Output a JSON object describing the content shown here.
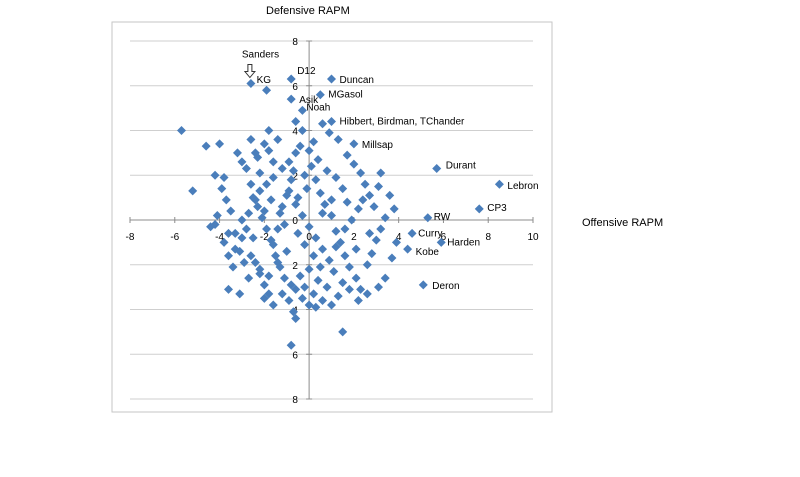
{
  "chart_data": {
    "type": "scatter",
    "title": "",
    "xlabel": "Offensive RAPM",
    "ylabel": "Defensive RAPM",
    "xlim": [
      -8,
      10
    ],
    "ylim": [
      -8,
      8
    ],
    "x_ticks": [
      "-8",
      "-6",
      "-4",
      "-2",
      "0",
      "2",
      "4",
      "6",
      "8",
      "10"
    ],
    "y_ticks": [
      "8",
      "6",
      "4",
      "2",
      "0",
      "2",
      "4",
      "6",
      "8"
    ],
    "grid": "horizontal",
    "legend": "none",
    "marker_color": "#4a7ebb",
    "labeled_points": [
      {
        "label": "Sanders",
        "x": -2.6,
        "y": 6.1
      },
      {
        "label": "KG",
        "x": -1.9,
        "y": 5.8
      },
      {
        "label": "D12",
        "x": -0.8,
        "y": 6.3
      },
      {
        "label": "Duncan",
        "x": 1.0,
        "y": 6.3
      },
      {
        "label": "Asik",
        "x": -0.8,
        "y": 5.4
      },
      {
        "label": "MGasol",
        "x": 0.5,
        "y": 5.6
      },
      {
        "label": "Noah",
        "x": -0.3,
        "y": 4.9
      },
      {
        "label": "Hibbert, Birdman, TChander",
        "x": 1.0,
        "y": 4.4
      },
      {
        "label": "Millsap",
        "x": 2.0,
        "y": 3.4
      },
      {
        "label": "Durant",
        "x": 5.7,
        "y": 2.3
      },
      {
        "label": "Lebron",
        "x": 8.5,
        "y": 1.6
      },
      {
        "label": "CP3",
        "x": 7.6,
        "y": 0.5
      },
      {
        "label": "RW",
        "x": 5.3,
        "y": 0.1
      },
      {
        "label": "Curry",
        "x": 4.6,
        "y": -0.6
      },
      {
        "label": "Harden",
        "x": 5.9,
        "y": -1.0
      },
      {
        "label": "Kobe",
        "x": 4.4,
        "y": -1.3
      },
      {
        "label": "Deron",
        "x": 5.1,
        "y": -2.9
      }
    ],
    "other_points": [
      [
        -5.7,
        4.0
      ],
      [
        -5.2,
        1.3
      ],
      [
        -4.6,
        3.3
      ],
      [
        -4.0,
        3.4
      ],
      [
        -4.2,
        2.0
      ],
      [
        -3.8,
        1.9
      ],
      [
        -4.4,
        -0.3
      ],
      [
        -4.2,
        -0.2
      ],
      [
        -3.6,
        -0.6
      ],
      [
        -3.3,
        -1.3
      ],
      [
        -3.4,
        -2.1
      ],
      [
        -3.6,
        -3.1
      ],
      [
        -3.1,
        -3.3
      ],
      [
        -3.0,
        -0.8
      ],
      [
        -3.2,
        3.0
      ],
      [
        -3.0,
        2.6
      ],
      [
        -2.8,
        2.3
      ],
      [
        -2.6,
        1.6
      ],
      [
        -2.4,
        0.9
      ],
      [
        -2.2,
        1.3
      ],
      [
        -2.0,
        0.4
      ],
      [
        -3.0,
        0.0
      ],
      [
        -2.8,
        -0.4
      ],
      [
        -2.6,
        -1.6
      ],
      [
        -2.4,
        -1.9
      ],
      [
        -2.2,
        -2.4
      ],
      [
        -2.0,
        -2.9
      ],
      [
        -1.8,
        -3.3
      ],
      [
        -1.6,
        -1.1
      ],
      [
        -1.4,
        -0.4
      ],
      [
        -1.2,
        0.6
      ],
      [
        -1.0,
        1.1
      ],
      [
        -0.8,
        1.8
      ],
      [
        -1.6,
        2.6
      ],
      [
        -1.8,
        3.1
      ],
      [
        -1.4,
        3.6
      ],
      [
        -1.8,
        4.0
      ],
      [
        -2.0,
        3.4
      ],
      [
        -2.4,
        3.0
      ],
      [
        -2.6,
        3.6
      ],
      [
        -2.2,
        2.1
      ],
      [
        -1.9,
        1.6
      ],
      [
        -1.6,
        1.9
      ],
      [
        -1.2,
        2.3
      ],
      [
        -0.9,
        2.6
      ],
      [
        -0.6,
        3.0
      ],
      [
        -0.4,
        3.3
      ],
      [
        -0.2,
        2.0
      ],
      [
        0.1,
        2.4
      ],
      [
        0.3,
        1.8
      ],
      [
        0.5,
        1.2
      ],
      [
        0.7,
        0.7
      ],
      [
        1.0,
        0.2
      ],
      [
        1.2,
        -0.5
      ],
      [
        1.4,
        -1.0
      ],
      [
        1.6,
        -1.6
      ],
      [
        1.8,
        -2.1
      ],
      [
        2.1,
        -2.6
      ],
      [
        2.3,
        -3.1
      ],
      [
        2.6,
        -2.0
      ],
      [
        2.8,
        -1.5
      ],
      [
        3.0,
        -0.9
      ],
      [
        3.2,
        -0.4
      ],
      [
        3.4,
        0.1
      ],
      [
        2.9,
        0.6
      ],
      [
        2.7,
        1.1
      ],
      [
        2.5,
        1.6
      ],
      [
        2.3,
        2.1
      ],
      [
        2.0,
        2.5
      ],
      [
        1.7,
        2.9
      ],
      [
        1.3,
        3.6
      ],
      [
        0.9,
        3.9
      ],
      [
        0.6,
        4.3
      ],
      [
        0.2,
        3.5
      ],
      [
        0.0,
        3.1
      ],
      [
        -0.3,
        4.0
      ],
      [
        -0.6,
        4.4
      ],
      [
        3.2,
        2.1
      ],
      [
        3.6,
        1.1
      ],
      [
        3.8,
        0.5
      ],
      [
        3.9,
        -1.0
      ],
      [
        3.7,
        -1.7
      ],
      [
        3.4,
        -2.6
      ],
      [
        3.1,
        -3.0
      ],
      [
        2.6,
        -3.3
      ],
      [
        2.2,
        -3.6
      ],
      [
        1.8,
        -3.1
      ],
      [
        1.5,
        -2.8
      ],
      [
        1.3,
        -3.4
      ],
      [
        1.0,
        -3.8
      ],
      [
        0.6,
        -3.6
      ],
      [
        0.3,
        -3.9
      ],
      [
        0.0,
        -3.8
      ],
      [
        -0.3,
        -3.5
      ],
      [
        -0.6,
        -3.1
      ],
      [
        -0.9,
        -3.6
      ],
      [
        -0.7,
        -4.1
      ],
      [
        -0.6,
        -4.4
      ],
      [
        -0.8,
        -5.6
      ],
      [
        1.5,
        -5.0
      ],
      [
        -1.1,
        -2.6
      ],
      [
        -1.3,
        -2.1
      ],
      [
        -1.5,
        -1.6
      ],
      [
        -1.7,
        -0.9
      ],
      [
        -1.9,
        -0.4
      ],
      [
        -2.1,
        0.1
      ],
      [
        -2.3,
        0.6
      ],
      [
        -2.5,
        1.0
      ],
      [
        -2.7,
        -2.6
      ],
      [
        -2.9,
        -1.9
      ],
      [
        -3.1,
        -1.4
      ],
      [
        -3.3,
        -0.6
      ],
      [
        -3.5,
        0.4
      ],
      [
        -3.7,
        0.9
      ],
      [
        -3.9,
        1.4
      ],
      [
        -4.1,
        0.2
      ],
      [
        -3.8,
        -1.0
      ],
      [
        -3.6,
        -1.6
      ],
      [
        -2.0,
        -3.5
      ],
      [
        -1.6,
        -3.8
      ],
      [
        -1.2,
        -3.3
      ],
      [
        -0.8,
        -2.9
      ],
      [
        -0.4,
        -2.5
      ],
      [
        0.0,
        -2.2
      ],
      [
        0.4,
        -2.7
      ],
      [
        0.8,
        -3.0
      ],
      [
        1.1,
        -2.3
      ],
      [
        0.9,
        -1.8
      ],
      [
        0.6,
        -1.3
      ],
      [
        0.3,
        -0.8
      ],
      [
        0.0,
        -0.3
      ],
      [
        -0.3,
        0.2
      ],
      [
        -0.6,
        0.7
      ],
      [
        -0.9,
        1.3
      ],
      [
        -1.1,
        -0.2
      ],
      [
        -1.3,
        0.3
      ],
      [
        -0.5,
        -0.6
      ],
      [
        -0.2,
        -1.1
      ],
      [
        0.2,
        -1.6
      ],
      [
        0.5,
        -2.1
      ],
      [
        1.6,
        -0.4
      ],
      [
        1.9,
        0.0
      ],
      [
        2.2,
        0.5
      ],
      [
        2.4,
        0.9
      ],
      [
        2.1,
        -1.3
      ],
      [
        1.7,
        0.8
      ],
      [
        1.5,
        1.4
      ],
      [
        1.2,
        1.9
      ],
      [
        0.8,
        2.2
      ],
      [
        0.4,
        2.7
      ],
      [
        -0.1,
        1.4
      ],
      [
        -0.5,
        1.0
      ],
      [
        -1.0,
        -1.4
      ],
      [
        -1.4,
        -1.9
      ],
      [
        -1.8,
        -2.5
      ],
      [
        -2.2,
        -2.2
      ],
      [
        -2.5,
        -0.8
      ],
      [
        -2.7,
        0.3
      ],
      [
        -0.2,
        -3.0
      ],
      [
        0.2,
        -3.3
      ],
      [
        1.2,
        -1.2
      ],
      [
        2.7,
        -0.6
      ],
      [
        3.1,
        1.5
      ],
      [
        1.0,
        0.9
      ],
      [
        -1.7,
        0.9
      ],
      [
        -2.3,
        2.8
      ],
      [
        -0.7,
        2.2
      ],
      [
        0.6,
        0.3
      ]
    ]
  },
  "labels": {
    "offensive_axis": "Offensive RAPM",
    "defensive_axis": "Defensive RAPM"
  }
}
